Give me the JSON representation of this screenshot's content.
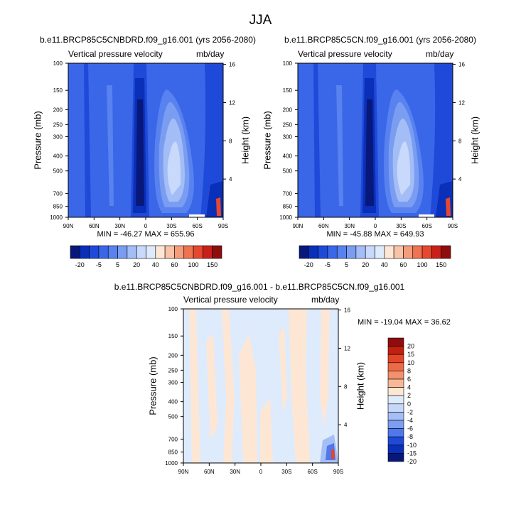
{
  "figure": {
    "title": "JJA"
  },
  "colors": {
    "blue_scale": [
      "#08187a",
      "#0a2fb8",
      "#1f49d8",
      "#3a66e8",
      "#5882ef",
      "#7a9df2",
      "#a3bdf6",
      "#c8d9fb",
      "#ddebfd"
    ],
    "red_scale": [
      "#fde7d4",
      "#f8c3a6",
      "#f39d7b",
      "#ee7351",
      "#e5482e",
      "#c9211a",
      "#8f0d0d"
    ],
    "diff_blue": [
      "#08187a",
      "#0a2fb8",
      "#1f49d8",
      "#4f78ec",
      "#7c9ef1",
      "#a5bef5",
      "#c6d7f8",
      "#ddebfd"
    ],
    "diff_red": [
      "#fde7d4",
      "#f7b995",
      "#f3916b",
      "#ee6a47",
      "#e24626",
      "#c2200e",
      "#8f0d0d"
    ]
  },
  "chart_data": [
    {
      "type": "heatmap",
      "panel": "top-left",
      "title": "b.e11.BRCP85C5CNBDRD.f09_g16.001 (yrs 2056-2080)",
      "left_subtitle": "Vertical pressure velocity",
      "right_subtitle": "mb/day",
      "xlabel": "",
      "ylabel": "Pressure (mb)",
      "right_ylabel": "Height (km)",
      "x_ticks": [
        "90N",
        "60N",
        "30N",
        "0",
        "30S",
        "60S",
        "90S"
      ],
      "y_ticks": [
        100,
        150,
        200,
        250,
        300,
        400,
        500,
        700,
        850,
        1000
      ],
      "right_ticks": [
        4,
        8,
        12,
        16
      ],
      "min": -46.27,
      "max": 655.96,
      "stats": "MIN = -46.27  MAX = 655.96",
      "colorbar_labels": [
        "-20",
        "-5",
        "5",
        "20",
        "40",
        "60",
        "100",
        "150"
      ]
    },
    {
      "type": "heatmap",
      "panel": "top-right",
      "title": "b.e11.BRCP85C5CN.f09_g16.001 (yrs 2056-2080)",
      "left_subtitle": "Vertical pressure velocity",
      "right_subtitle": "mb/day",
      "xlabel": "",
      "ylabel": "Pressure (mb)",
      "right_ylabel": "Height (km)",
      "x_ticks": [
        "90N",
        "60N",
        "30N",
        "0",
        "30S",
        "60S",
        "90S"
      ],
      "y_ticks": [
        100,
        150,
        200,
        250,
        300,
        400,
        500,
        700,
        850,
        1000
      ],
      "right_ticks": [
        4,
        8,
        12,
        16
      ],
      "min": -45.88,
      "max": 649.93,
      "stats": "MIN = -45.88  MAX = 649.93",
      "colorbar_labels": [
        "-20",
        "-5",
        "5",
        "20",
        "40",
        "60",
        "100",
        "150"
      ]
    },
    {
      "type": "heatmap",
      "panel": "bottom",
      "title": "b.e11.BRCP85C5CNBDRD.f09_g16.001 - b.e11.BRCP85C5CN.f09_g16.001",
      "left_subtitle": "Vertical pressure velocity",
      "right_subtitle": "mb/day",
      "xlabel": "",
      "ylabel": "Pressure (mb)",
      "right_ylabel": "Height (km)",
      "x_ticks": [
        "90N",
        "60N",
        "30N",
        "0",
        "30S",
        "60S",
        "90S"
      ],
      "y_ticks": [
        100,
        150,
        200,
        250,
        300,
        400,
        500,
        700,
        850,
        1000
      ],
      "right_ticks": [
        4,
        8,
        12,
        16
      ],
      "min": -19.04,
      "max": 36.62,
      "stats": "MIN = -19.04  MAX =  36.62",
      "colorbar_labels": [
        "20",
        "15",
        "10",
        "8",
        "6",
        "4",
        "2",
        "0",
        "-2",
        "-4",
        "-6",
        "-8",
        "-10",
        "-15",
        "-20"
      ]
    }
  ]
}
